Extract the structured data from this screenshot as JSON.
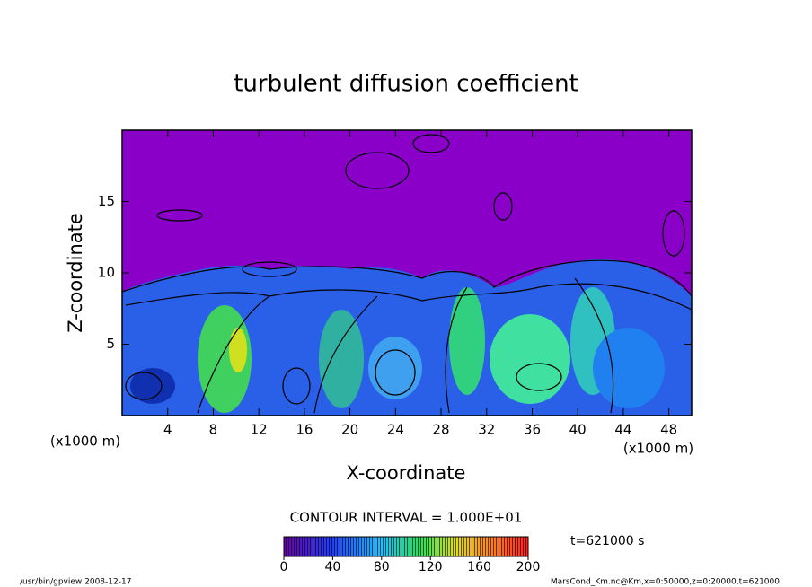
{
  "chart_data": {
    "type": "contour",
    "title": "turbulent diffusion coefficient",
    "xlabel": "X-coordinate",
    "ylabel": "Z-coordinate",
    "x_unit": "(x1000 m)",
    "y_unit": "(x1000 m)",
    "xlim": [
      0,
      50
    ],
    "xticks": [
      4,
      8,
      12,
      16,
      20,
      24,
      28,
      32,
      36,
      40,
      44,
      48
    ],
    "ylim": [
      0,
      20
    ],
    "yticks": [
      5,
      10,
      15
    ],
    "contour_interval": "CONTOUR INTERVAL = 1.000E+01",
    "colorbar": {
      "lim": [
        0,
        200
      ],
      "ticks": [
        0,
        40,
        80,
        120,
        160,
        200
      ]
    },
    "time_label": "t=621000 s",
    "footer_left": "/usr/bin/gpview  2008-12-17",
    "footer_right": "MarsCond_Km.nc@Km,x=0:50000,z=0:20000,t=621000"
  }
}
